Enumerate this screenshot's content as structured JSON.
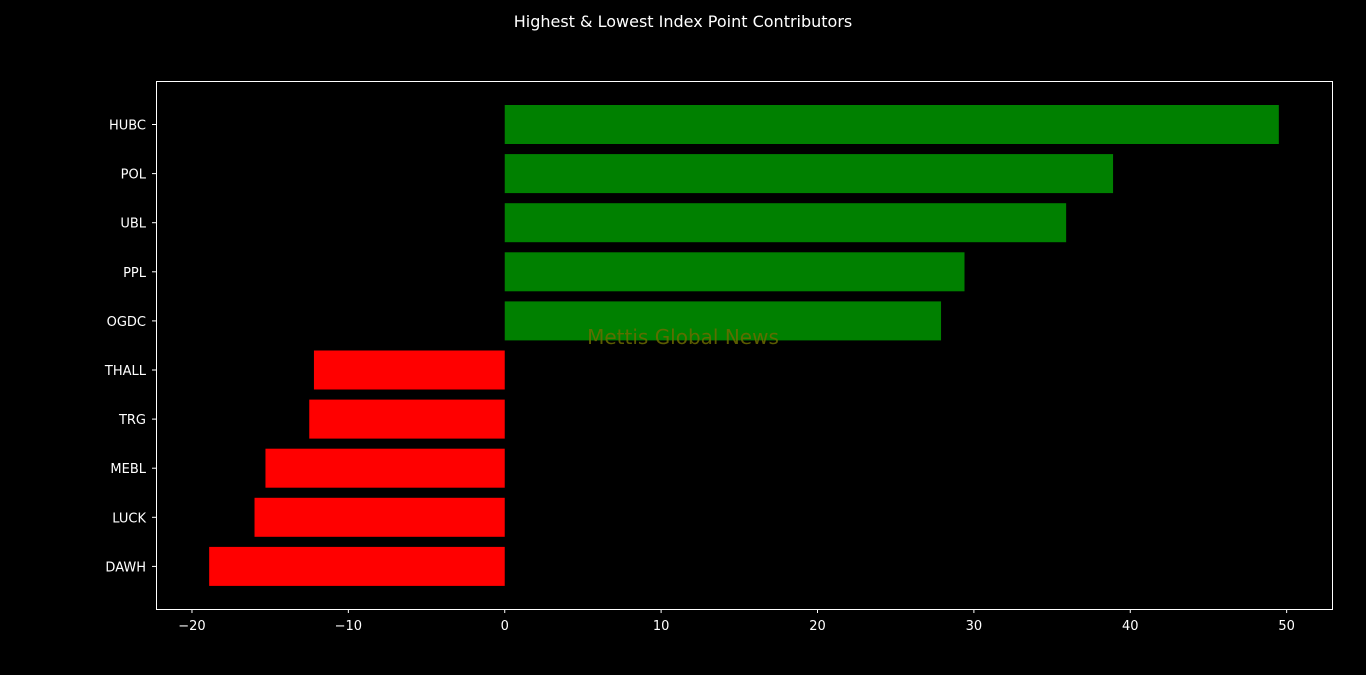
{
  "chart_data": {
    "type": "bar",
    "orientation": "horizontal",
    "title": "Highest & Lowest Index Point Contributors",
    "categories": [
      "HUBC",
      "POL",
      "UBL",
      "PPL",
      "OGDC",
      "THALL",
      "TRG",
      "MEBL",
      "LUCK",
      "DAWH"
    ],
    "values": [
      49.5,
      38.9,
      35.9,
      29.4,
      27.9,
      -12.2,
      -12.5,
      -15.3,
      -16.0,
      -18.9
    ],
    "xlim": [
      -22.3,
      52.9
    ],
    "xticks": [
      -20,
      -10,
      0,
      10,
      20,
      30,
      40,
      50
    ],
    "xtick_labels": [
      "−20",
      "−10",
      "0",
      "10",
      "20",
      "30",
      "40",
      "50"
    ],
    "xlabel": "",
    "ylabel": "",
    "grid": false,
    "colors": {
      "positive": "#008000",
      "negative": "#ff0000",
      "background": "#000000",
      "axes": "#ffffff",
      "text": "#ffffff"
    }
  },
  "watermark": {
    "text": "Mettis Global News",
    "color": "#6b6b00"
  }
}
